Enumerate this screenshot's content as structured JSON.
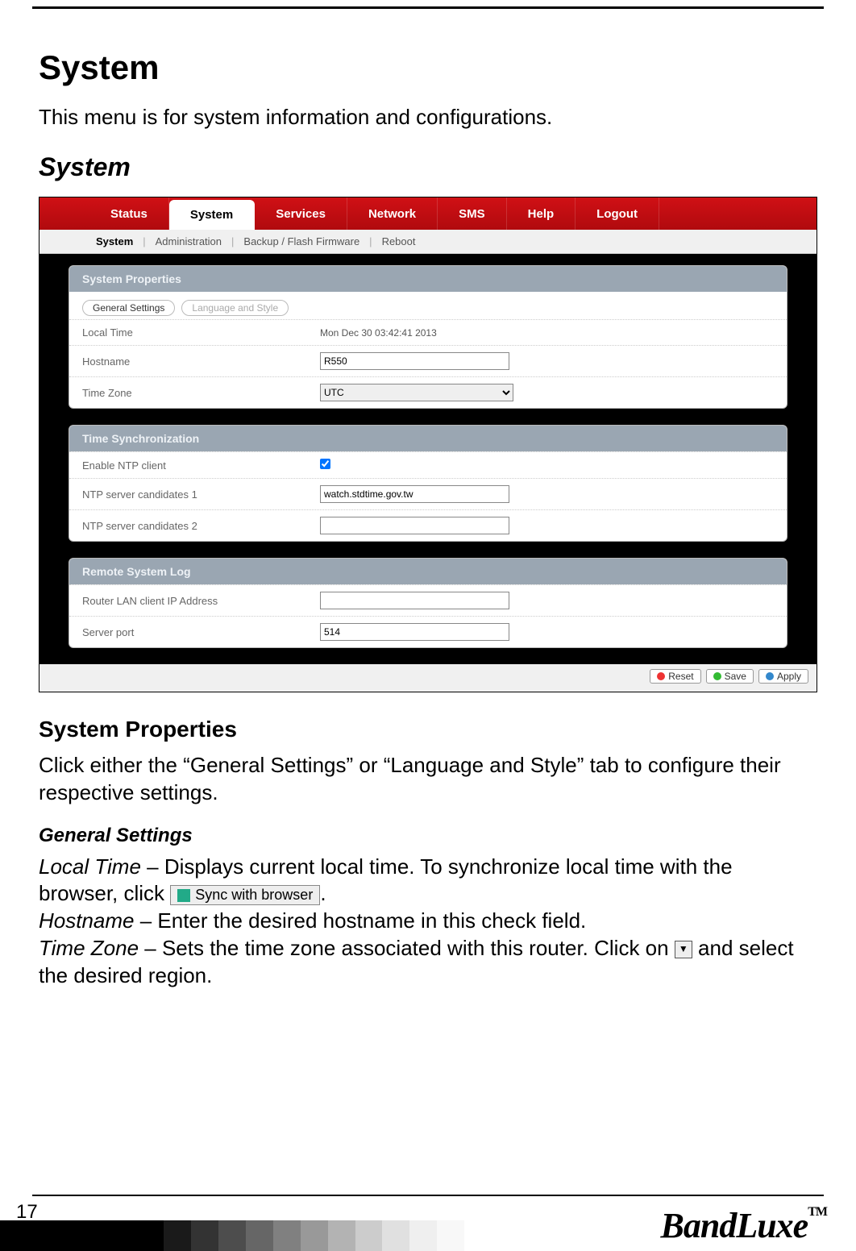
{
  "doc": {
    "h1": "System",
    "intro": "This menu is for system information and configurations.",
    "h2": "System",
    "h3": "System Properties",
    "para1": "Click either the “General Settings” or “Language and Style” tab to configure their respective settings.",
    "h4": "General Settings",
    "local_time_label": "Local Time",
    "local_time_text1": " – Displays current local time. To synchronize local time with the browser, click ",
    "local_time_text2": ".",
    "sync_btn_label": "Sync with browser",
    "hostname_label": "Hostname",
    "hostname_text": " – Enter the desired hostname in this check field.",
    "timezone_label": "Time Zone",
    "timezone_text1": " – Sets the time zone associated with this router. Click on ",
    "timezone_text2": " and select the desired region."
  },
  "nav": {
    "tabs": [
      "Status",
      "System",
      "Services",
      "Network",
      "SMS",
      "Help",
      "Logout"
    ],
    "active_index": 1,
    "subnav": [
      "System",
      "Administration",
      "Backup / Flash Firmware",
      "Reboot"
    ],
    "subnav_active_index": 0
  },
  "panels": {
    "sys_props": {
      "title": "System Properties",
      "pills": [
        "General Settings",
        "Language and Style"
      ],
      "rows": {
        "local_time": {
          "label": "Local Time",
          "value": "Mon Dec 30 03:42:41 2013"
        },
        "hostname": {
          "label": "Hostname",
          "value": "R550"
        },
        "timezone": {
          "label": "Time Zone",
          "value": "UTC"
        }
      }
    },
    "time_sync": {
      "title": "Time Synchronization",
      "rows": {
        "enable": {
          "label": "Enable NTP client",
          "checked": true
        },
        "ntp1": {
          "label": "NTP server candidates 1",
          "value": "watch.stdtime.gov.tw"
        },
        "ntp2": {
          "label": "NTP server candidates 2",
          "value": ""
        }
      }
    },
    "remote_log": {
      "title": "Remote System Log",
      "rows": {
        "ip": {
          "label": "Router LAN client IP Address",
          "value": ""
        },
        "port": {
          "label": "Server port",
          "value": "514"
        }
      }
    }
  },
  "buttons": {
    "reset": "Reset",
    "save": "Save",
    "apply": "Apply"
  },
  "footer": {
    "page": "17",
    "brand": "BandLuxe",
    "tm": "TM",
    "grad_colors": [
      "#000000",
      "#000000",
      "#000000",
      "#000000",
      "#000000",
      "#000000",
      "#1a1a1a",
      "#333333",
      "#4d4d4d",
      "#666666",
      "#808080",
      "#999999",
      "#b3b3b3",
      "#cccccc",
      "#e0e0e0",
      "#efefef",
      "#f8f8f8",
      "#ffffff"
    ]
  },
  "colors": {
    "nav_bg": "#c4121a",
    "panel_header": "#9aa6b2"
  }
}
